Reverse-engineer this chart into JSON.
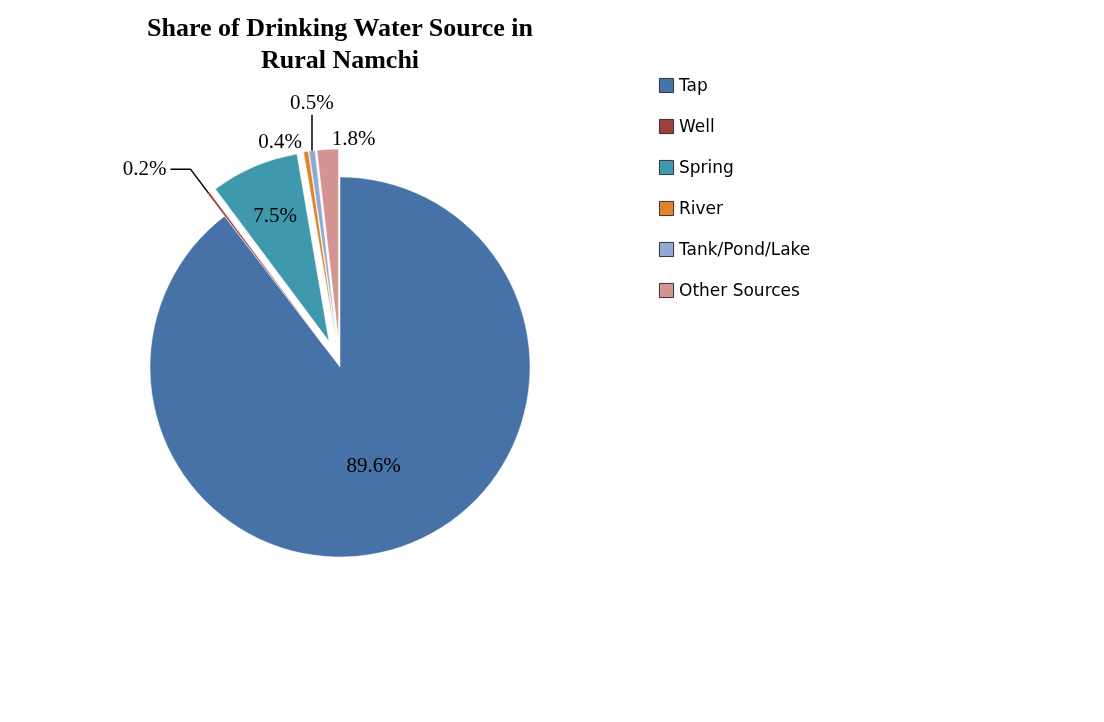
{
  "chart_data": {
    "type": "pie",
    "title": "Share of Drinking Water Source in Rural Namchi",
    "categories": [
      "Tap",
      "Well",
      "Spring",
      "River",
      "Tank/Pond/Lake",
      "Other Sources"
    ],
    "values": [
      89.6,
      0.2,
      7.5,
      0.4,
      0.5,
      1.8
    ],
    "value_labels": [
      "89.6%",
      "0.2%",
      "7.5%",
      "0.4%",
      "0.5%",
      "1.8%"
    ],
    "colors": [
      "#4672a8",
      "#a0403e",
      "#3f98ab",
      "#e0832e",
      "#92a9d4",
      "#d39492"
    ],
    "legend": "right"
  }
}
